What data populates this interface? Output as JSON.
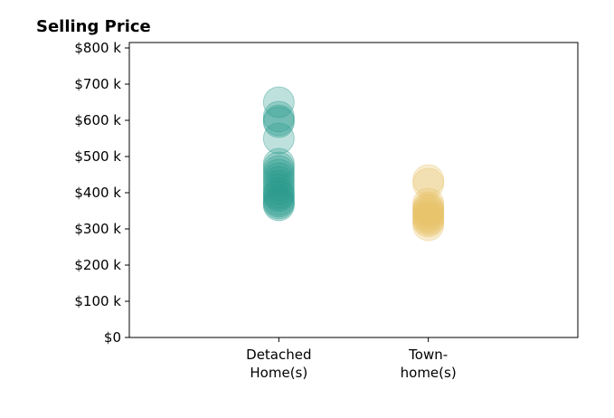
{
  "chart_data": {
    "type": "scatter",
    "title": "Selling Price",
    "xlabel": "",
    "ylabel": "",
    "categories": [
      [
        "Detached",
        "Home(s)"
      ],
      [
        "Town-",
        "home(s)"
      ]
    ],
    "x_range": [
      -1,
      2
    ],
    "ylim": [
      0,
      815000
    ],
    "y_ticks": [
      0,
      100000,
      200000,
      300000,
      400000,
      500000,
      600000,
      700000,
      800000
    ],
    "y_tick_labels": [
      "$0",
      "$100 k",
      "$200 k",
      "$300 k",
      "$400 k",
      "$500 k",
      "$600 k",
      "$700 k",
      "$800 k"
    ],
    "grid": false,
    "legend": "none",
    "marker_alpha": 0.3,
    "series": [
      {
        "category_index": 0,
        "color": "#2a9d8f",
        "values": [
          650000,
          610000,
          600000,
          595000,
          550000,
          480000,
          470000,
          460000,
          450000,
          440000,
          430000,
          420000,
          410000,
          400000,
          395000,
          390000,
          380000,
          375000,
          370000,
          365000
        ]
      },
      {
        "category_index": 1,
        "color": "#e9c46a",
        "values": [
          435000,
          425000,
          370000,
          360000,
          355000,
          350000,
          345000,
          340000,
          335000,
          330000,
          325000,
          320000,
          310000
        ]
      }
    ]
  }
}
